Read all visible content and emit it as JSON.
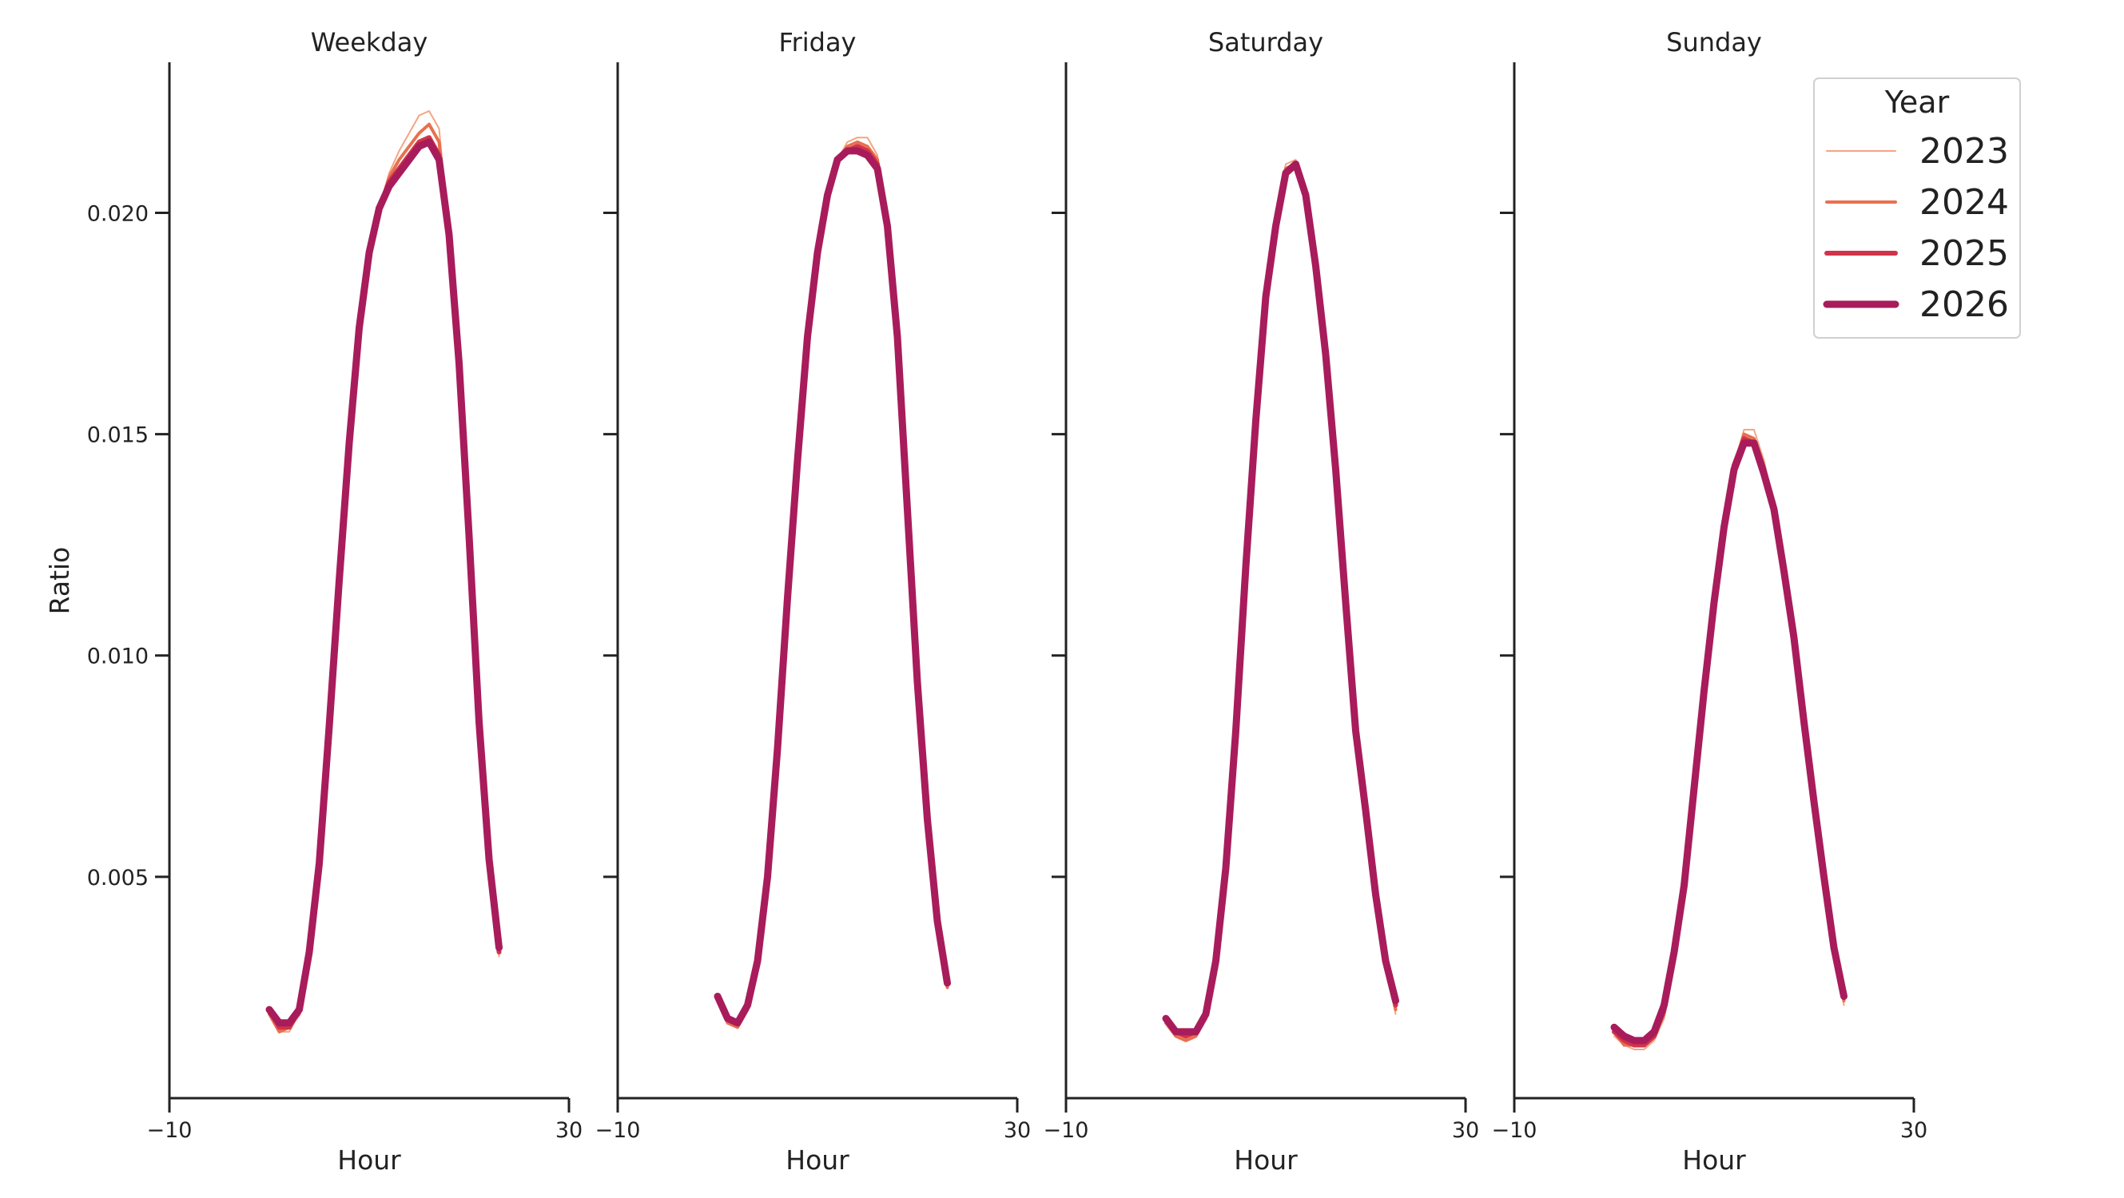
{
  "chart_data": {
    "type": "line",
    "ylabel": "Ratio",
    "xlabel": "Hour",
    "xlim": [
      -10,
      30
    ],
    "ylim": [
      0,
      0.0234
    ],
    "x_ticks": [
      -10,
      30
    ],
    "x_tick_labels": [
      "−10",
      "30"
    ],
    "y_ticks": [
      0.005,
      0.01,
      0.015,
      0.02
    ],
    "y_tick_labels": [
      "0.005",
      "0.010",
      "0.015",
      "0.020"
    ],
    "legend": {
      "title": "Year",
      "placement": "top-right",
      "entries": [
        {
          "label": "2023",
          "color": "#f4a582",
          "width": 2
        },
        {
          "label": "2024",
          "color": "#e8704f",
          "width": 4
        },
        {
          "label": "2025",
          "color": "#d1344a",
          "width": 6
        },
        {
          "label": "2026",
          "color": "#a81c5b",
          "width": 9
        }
      ]
    },
    "x": [
      0,
      1,
      2,
      3,
      4,
      5,
      6,
      7,
      8,
      9,
      10,
      11,
      12,
      13,
      14,
      15,
      16,
      17,
      18,
      19,
      20,
      21,
      22,
      23
    ],
    "panels": [
      {
        "title": "Weekday",
        "series": [
          {
            "name": "2023",
            "values": [
              0.0019,
              0.0015,
              0.0015,
              0.0019,
              0.0032,
              0.0052,
              0.0084,
              0.0117,
              0.0148,
              0.0174,
              0.0191,
              0.0201,
              0.0209,
              0.0214,
              0.0218,
              0.0222,
              0.0223,
              0.0219,
              0.0195,
              0.0166,
              0.0128,
              0.0087,
              0.0054,
              0.0032
            ]
          },
          {
            "name": "2024",
            "values": [
              0.0019,
              0.0015,
              0.0016,
              0.0019,
              0.0032,
              0.0052,
              0.0084,
              0.0117,
              0.0148,
              0.0174,
              0.0191,
              0.0201,
              0.0208,
              0.0212,
              0.0215,
              0.0218,
              0.022,
              0.0216,
              0.0195,
              0.0166,
              0.0128,
              0.0087,
              0.0054,
              0.0033
            ]
          },
          {
            "name": "2025",
            "values": [
              0.002,
              0.0016,
              0.0016,
              0.002,
              0.0033,
              0.0053,
              0.0084,
              0.0117,
              0.0148,
              0.0174,
              0.0191,
              0.0201,
              0.0207,
              0.021,
              0.0213,
              0.0216,
              0.0217,
              0.0213,
              0.0195,
              0.0166,
              0.0128,
              0.0086,
              0.0054,
              0.0033
            ]
          },
          {
            "name": "2026",
            "values": [
              0.002,
              0.0017,
              0.0017,
              0.002,
              0.0033,
              0.0053,
              0.0084,
              0.0117,
              0.0148,
              0.0174,
              0.0191,
              0.0201,
              0.0206,
              0.0209,
              0.0212,
              0.0215,
              0.0216,
              0.0212,
              0.0195,
              0.0166,
              0.0127,
              0.0085,
              0.0054,
              0.0034
            ]
          }
        ]
      },
      {
        "title": "Friday",
        "series": [
          {
            "name": "2023",
            "values": [
              0.0022,
              0.0017,
              0.0016,
              0.002,
              0.0031,
              0.005,
              0.0079,
              0.0113,
              0.0144,
              0.0172,
              0.0191,
              0.0204,
              0.0212,
              0.0216,
              0.0217,
              0.0217,
              0.0213,
              0.0197,
              0.0172,
              0.0133,
              0.0094,
              0.0063,
              0.004,
              0.0025
            ]
          },
          {
            "name": "2024",
            "values": [
              0.0022,
              0.0017,
              0.0016,
              0.002,
              0.0031,
              0.005,
              0.0079,
              0.0113,
              0.0144,
              0.0172,
              0.0191,
              0.0204,
              0.0212,
              0.0215,
              0.0216,
              0.0215,
              0.0212,
              0.0197,
              0.0172,
              0.0133,
              0.0094,
              0.0063,
              0.004,
              0.0025
            ]
          },
          {
            "name": "2025",
            "values": [
              0.0023,
              0.0018,
              0.0017,
              0.0021,
              0.0031,
              0.005,
              0.0079,
              0.0113,
              0.0144,
              0.0172,
              0.0191,
              0.0204,
              0.0212,
              0.0214,
              0.0215,
              0.0214,
              0.0211,
              0.0197,
              0.0172,
              0.0133,
              0.0094,
              0.0063,
              0.004,
              0.0026
            ]
          },
          {
            "name": "2026",
            "values": [
              0.0023,
              0.0018,
              0.0017,
              0.0021,
              0.0031,
              0.005,
              0.0079,
              0.0113,
              0.0144,
              0.0172,
              0.0191,
              0.0204,
              0.0212,
              0.0214,
              0.0214,
              0.0213,
              0.021,
              0.0197,
              0.0172,
              0.0133,
              0.0094,
              0.0063,
              0.004,
              0.0026
            ]
          }
        ]
      },
      {
        "title": "Saturday",
        "series": [
          {
            "name": "2023",
            "values": [
              0.0017,
              0.0014,
              0.0013,
              0.0014,
              0.0018,
              0.0031,
              0.0051,
              0.0083,
              0.012,
              0.0153,
              0.0181,
              0.0199,
              0.0211,
              0.0212,
              0.0204,
              0.0188,
              0.0168,
              0.0142,
              0.0112,
              0.0082,
              0.0063,
              0.0044,
              0.003,
              0.0019
            ]
          },
          {
            "name": "2024",
            "values": [
              0.0017,
              0.0014,
              0.0013,
              0.0014,
              0.0018,
              0.0031,
              0.0051,
              0.0083,
              0.012,
              0.0153,
              0.0181,
              0.0198,
              0.021,
              0.0211,
              0.0204,
              0.0188,
              0.0168,
              0.0142,
              0.0112,
              0.0082,
              0.0064,
              0.0045,
              0.003,
              0.002
            ]
          },
          {
            "name": "2025",
            "values": [
              0.0018,
              0.0015,
              0.0014,
              0.0015,
              0.0019,
              0.0031,
              0.0052,
              0.0083,
              0.012,
              0.0153,
              0.0181,
              0.0198,
              0.0209,
              0.0211,
              0.0204,
              0.0188,
              0.0168,
              0.0142,
              0.0112,
              0.0083,
              0.0065,
              0.0046,
              0.0031,
              0.0021
            ]
          },
          {
            "name": "2026",
            "values": [
              0.0018,
              0.0015,
              0.0015,
              0.0015,
              0.0019,
              0.0031,
              0.0052,
              0.0083,
              0.012,
              0.0153,
              0.0181,
              0.0197,
              0.0209,
              0.0211,
              0.0204,
              0.0188,
              0.0168,
              0.0142,
              0.0112,
              0.0083,
              0.0065,
              0.0046,
              0.0031,
              0.0022
            ]
          }
        ]
      },
      {
        "title": "Sunday",
        "series": [
          {
            "name": "2023",
            "values": [
              0.0014,
              0.0012,
              0.0011,
              0.0011,
              0.0013,
              0.0018,
              0.0031,
              0.0047,
              0.0069,
              0.0092,
              0.0112,
              0.0129,
              0.0143,
              0.0151,
              0.0151,
              0.0144,
              0.0133,
              0.0119,
              0.0103,
              0.0084,
              0.0066,
              0.0049,
              0.0032,
              0.0021
            ]
          },
          {
            "name": "2024",
            "values": [
              0.0015,
              0.0012,
              0.0012,
              0.0012,
              0.0014,
              0.0019,
              0.0031,
              0.0047,
              0.0069,
              0.0092,
              0.0112,
              0.0129,
              0.0143,
              0.015,
              0.0149,
              0.0143,
              0.0133,
              0.0119,
              0.0103,
              0.0084,
              0.0066,
              0.0049,
              0.0033,
              0.0022
            ]
          },
          {
            "name": "2025",
            "values": [
              0.0015,
              0.0013,
              0.0012,
              0.0012,
              0.0014,
              0.002,
              0.0032,
              0.0048,
              0.0069,
              0.0092,
              0.0112,
              0.0129,
              0.0143,
              0.0149,
              0.0148,
              0.0142,
              0.0133,
              0.0119,
              0.0103,
              0.0085,
              0.0066,
              0.0049,
              0.0033,
              0.0023
            ]
          },
          {
            "name": "2026",
            "values": [
              0.0016,
              0.0014,
              0.0013,
              0.0013,
              0.0015,
              0.0021,
              0.0033,
              0.0048,
              0.007,
              0.0092,
              0.0112,
              0.0129,
              0.0142,
              0.0148,
              0.0148,
              0.0141,
              0.0133,
              0.0119,
              0.0104,
              0.0085,
              0.0067,
              0.005,
              0.0034,
              0.0023
            ]
          }
        ]
      }
    ]
  }
}
